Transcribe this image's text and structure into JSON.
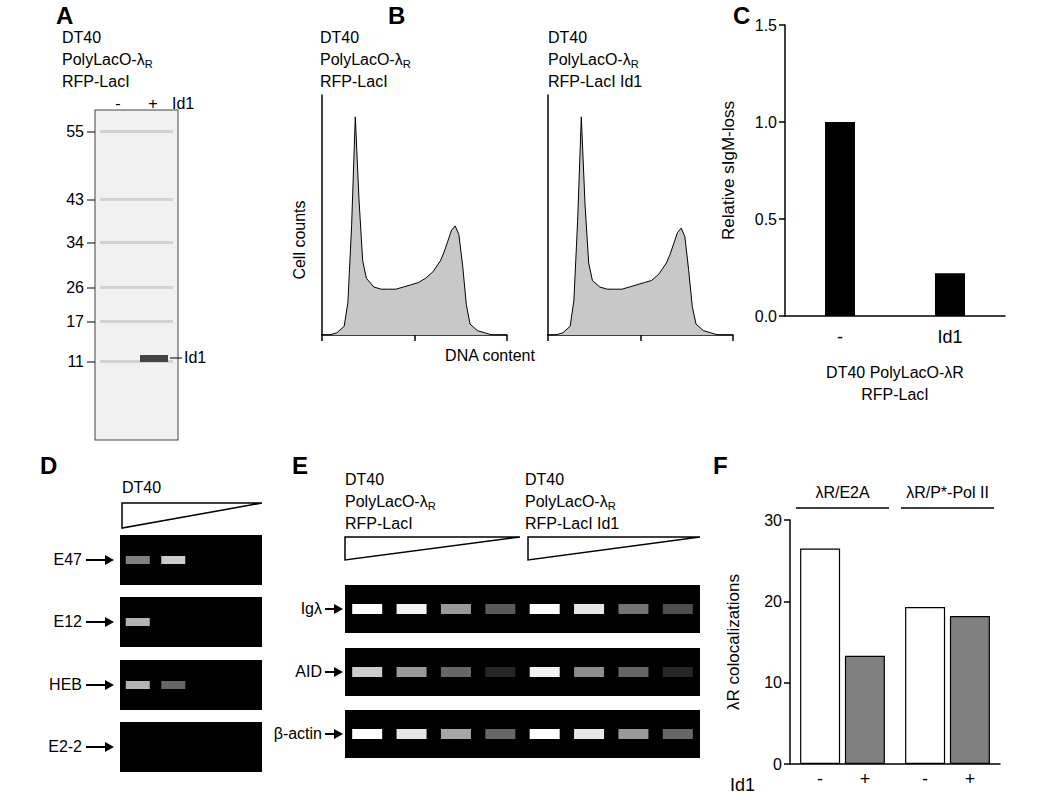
{
  "panel_letters": [
    "A",
    "B",
    "C",
    "D",
    "E",
    "F"
  ],
  "panel_A": {
    "header": [
      "DT40",
      "PolyLacO-λR",
      "RFP-LacI"
    ],
    "lanes": [
      "-",
      "+"
    ],
    "lane_label": "Id1",
    "ladder": [
      55,
      43,
      34,
      26,
      17,
      11
    ],
    "band_label": "Id1"
  },
  "panel_B": {
    "ylabel": "Cell counts",
    "xlabel": "DNA content"
  },
  "panel_D": {
    "header": "DT40",
    "rows": [
      {
        "label": "E47",
        "bands": [
          0.5,
          0.8,
          0,
          0
        ]
      },
      {
        "label": "E12",
        "bands": [
          0.7,
          0,
          0,
          0
        ]
      },
      {
        "label": "HEB",
        "bands": [
          0.7,
          0.4,
          0,
          0
        ]
      },
      {
        "label": "E2-2",
        "bands": [
          0,
          0,
          0,
          0
        ]
      }
    ]
  },
  "panel_E": {
    "groups": [
      [
        "DT40",
        "PolyLacO-λR",
        "RFP-LacI"
      ],
      [
        "DT40",
        "PolyLacO-λR",
        "RFP-LacI Id1"
      ]
    ],
    "rows": [
      {
        "label": "Igλ",
        "bands": [
          1,
          0.95,
          0.6,
          0.35,
          1,
          0.9,
          0.45,
          0.3
        ]
      },
      {
        "label": "AID",
        "bands": [
          0.8,
          0.6,
          0.4,
          0.15,
          0.95,
          0.55,
          0.4,
          0.15
        ]
      },
      {
        "label": "β-actin",
        "bands": [
          1,
          0.9,
          0.65,
          0.4,
          1,
          0.9,
          0.6,
          0.4
        ]
      }
    ]
  },
  "chart_data": [
    {
      "type": "area",
      "title": "DT40\nPolyLacO-λR\nRFP-LacI",
      "color": "#c8c8c8",
      "x": [
        0,
        4,
        8,
        12,
        14,
        16,
        18,
        20,
        22,
        24,
        28,
        32,
        36,
        40,
        44,
        48,
        52,
        56,
        60,
        64,
        66,
        68,
        70,
        72,
        74,
        76,
        78,
        80,
        84,
        88,
        92,
        96,
        100
      ],
      "values": [
        0,
        0,
        1,
        4,
        15,
        50,
        100,
        62,
        34,
        26,
        22,
        21,
        21,
        21,
        22,
        23,
        24,
        26,
        29,
        34,
        38,
        43,
        48,
        50,
        46,
        32,
        14,
        5,
        2,
        1,
        0,
        0,
        0
      ],
      "xlim": [
        0,
        100
      ],
      "xticks": [
        0,
        50,
        100
      ],
      "ylim": [
        0,
        110
      ],
      "tick_labels": false
    },
    {
      "type": "area",
      "title": "DT40\nPolyLacO-λR\nRFP-LacI Id1",
      "color": "#c8c8c8",
      "x": [
        0,
        4,
        8,
        12,
        14,
        16,
        18,
        20,
        22,
        24,
        28,
        32,
        36,
        40,
        44,
        48,
        52,
        56,
        60,
        64,
        66,
        68,
        70,
        72,
        74,
        76,
        78,
        80,
        84,
        88,
        92,
        96,
        100
      ],
      "values": [
        0,
        0,
        1,
        4,
        16,
        52,
        100,
        60,
        33,
        25,
        22,
        21,
        21,
        21,
        22,
        23,
        24,
        25,
        28,
        33,
        37,
        42,
        47,
        49,
        45,
        30,
        13,
        5,
        2,
        1,
        0,
        0,
        0
      ],
      "xlim": [
        0,
        100
      ],
      "xticks": [
        0,
        50,
        100
      ],
      "ylim": [
        0,
        110
      ],
      "tick_labels": false
    },
    {
      "type": "bar",
      "categories": [
        "-",
        "Id1"
      ],
      "values": [
        1.0,
        0.22
      ],
      "color": "#000000",
      "ylim": [
        0,
        1.5
      ],
      "yticks": [
        {
          "value": 0,
          "label": "0.0"
        },
        0.5,
        {
          "value": 1,
          "label": "1.0"
        },
        1.5
      ],
      "ylabel": "Relative sIgM-loss",
      "xlabel": "DT40 PolyLacO-λR\nRFP-LacI"
    },
    {
      "type": "bar",
      "categories": [
        "λR/E2A",
        "λR/P*-Pol II"
      ],
      "series": [
        {
          "name": "-",
          "color": "#ffffff",
          "values": [
            26.5,
            19.3
          ]
        },
        {
          "name": "+",
          "color": "#808080",
          "values": [
            13.3,
            18.2
          ]
        }
      ],
      "ylim": [
        0,
        30
      ],
      "yticks": [
        0,
        10,
        20,
        30
      ],
      "ylabel": "λR colocalizations",
      "xlabel": "Id1"
    }
  ]
}
